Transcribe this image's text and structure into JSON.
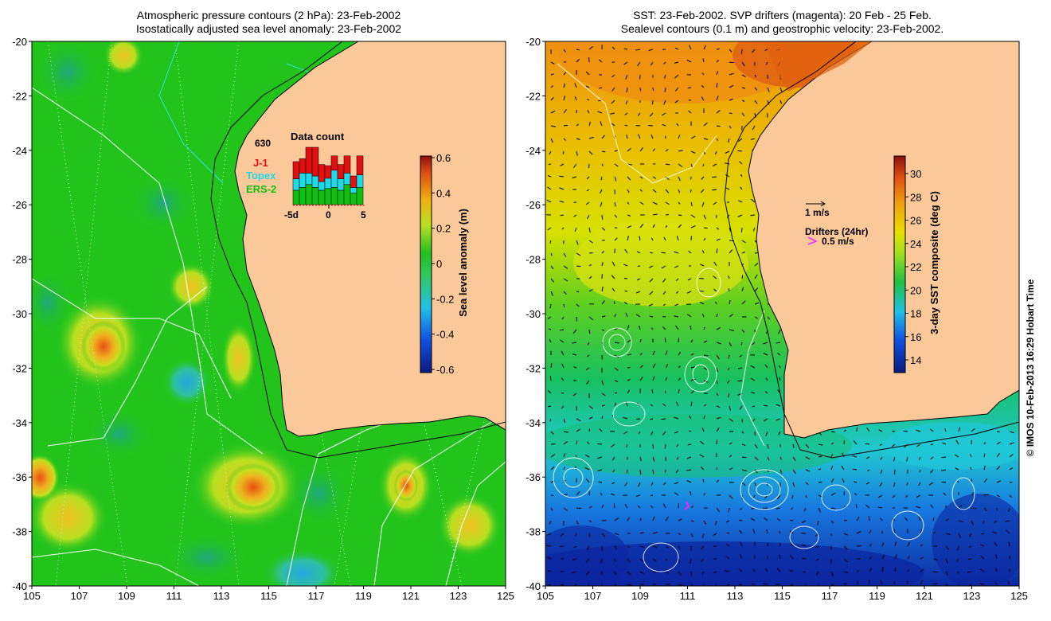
{
  "left_panel": {
    "title_line1": "Atmospheric pressure contours (2 hPa): 23-Feb-2002",
    "title_line2": "Isostatically adjusted sea level anomaly: 23-Feb-2002",
    "colorbar_label": "Sea level anomaly (m)",
    "colorbar_ticks": [
      "0.6",
      "0.4",
      "0.2",
      "0",
      "-0.2",
      "-0.4",
      "-0.6"
    ],
    "inset": {
      "title": "Data count",
      "max_count": "630",
      "legend": [
        {
          "label": "J-1",
          "color": "#e01010"
        },
        {
          "label": "Topex",
          "color": "#20d8e8"
        },
        {
          "label": "ERS-2",
          "color": "#10c010"
        }
      ],
      "x_ticks": [
        "-5d",
        "0",
        "5"
      ],
      "bars": [
        {
          "ers2": 0.25,
          "topex": 0.2,
          "j1": 0.3
        },
        {
          "ers2": 0.3,
          "topex": 0.25,
          "j1": 0.25
        },
        {
          "ers2": 0.35,
          "topex": 0.2,
          "j1": 0.45
        },
        {
          "ers2": 0.3,
          "topex": 0.2,
          "j1": 0.5
        },
        {
          "ers2": 0.25,
          "topex": 0.15,
          "j1": 0.3
        },
        {
          "ers2": 0.28,
          "topex": 0.18,
          "j1": 0.22
        },
        {
          "ers2": 0.3,
          "topex": 0.3,
          "j1": 0.25
        },
        {
          "ers2": 0.25,
          "topex": 0.2,
          "j1": 0.25
        },
        {
          "ers2": 0.35,
          "topex": 0.2,
          "j1": 0.3
        },
        {
          "ers2": 0.2,
          "topex": 0.1,
          "j1": 0.2
        },
        {
          "ers2": 0.3,
          "topex": 0.22,
          "j1": 0.33
        }
      ]
    }
  },
  "right_panel": {
    "title_line1": "SST: 23-Feb-2002. SVP drifters (magenta): 20 Feb - 25 Feb.",
    "title_line2": "Sealevel contours (0.1 m) and geostrophic velocity: 23-Feb-2002.",
    "colorbar_label": "3-day SST composite (deg C)",
    "colorbar_ticks": [
      "30",
      "28",
      "26",
      "24",
      "22",
      "20",
      "18",
      "16",
      "14"
    ],
    "velocity_scale_label": "1 m/s",
    "drifters_label": "Drifters (24hr)",
    "drifters_speed": "0.5 m/s"
  },
  "axes": {
    "lat_ticks": [
      "-20",
      "-22",
      "-24",
      "-26",
      "-28",
      "-30",
      "-32",
      "-34",
      "-36",
      "-38",
      "-40"
    ],
    "lon_ticks": [
      "105",
      "107",
      "109",
      "111",
      "113",
      "115",
      "117",
      "119",
      "121",
      "123",
      "125"
    ]
  },
  "footer": "© IMOS 10-Feb-2013 16:29 Hobart Time",
  "colors": {
    "land": "#fbc89a",
    "sla_green": "#22c41c",
    "sst_yellow": "#e6d200",
    "sst_blue": "#1a52d8"
  }
}
